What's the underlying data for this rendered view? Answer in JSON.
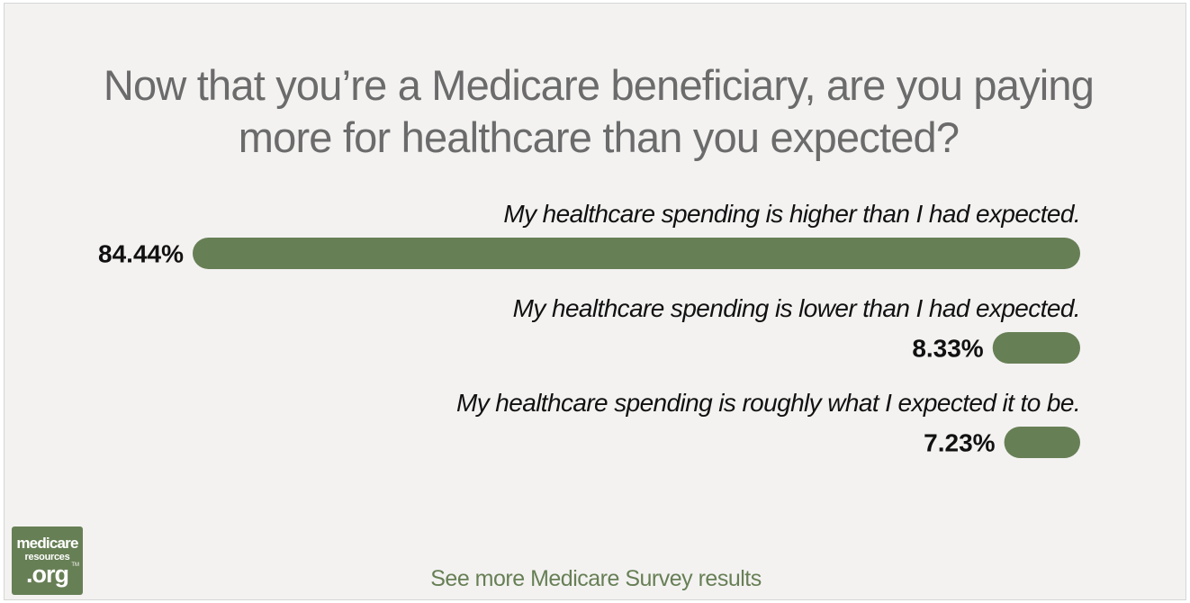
{
  "colors": {
    "bar": "#677f55",
    "title": "#6b6b6b",
    "label": "#111111",
    "link": "#677f55",
    "logo_bg": "#677f55"
  },
  "chart_data": {
    "type": "bar",
    "orientation": "horizontal",
    "title": "Now that you’re a Medicare beneficiary, are you paying more for healthcare than you expected?",
    "xlim": [
      0,
      84.44
    ],
    "grid": false,
    "categories": [
      "My healthcare spending is higher than I had expected.",
      "My healthcare spending is lower than I had expected.",
      "My healthcare spending is roughly what I expected it to be."
    ],
    "values": [
      84.44,
      8.33,
      7.23
    ],
    "value_labels": [
      "84.44%",
      "8.33%",
      "7.23%"
    ]
  },
  "logo": {
    "line1": "medicare",
    "line2": "resources",
    "line3": ".org",
    "tm": "TM"
  },
  "footer": {
    "link_text": "See more Medicare Survey results"
  }
}
